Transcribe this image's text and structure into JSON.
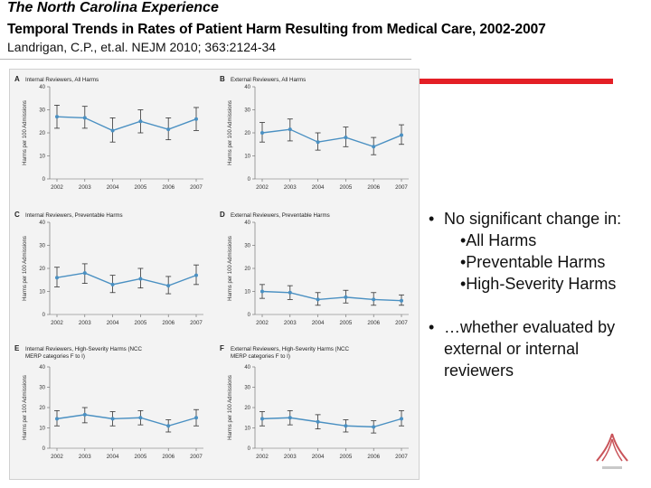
{
  "slide": {
    "title": "The North Carolina Experience",
    "subtitle": "Temporal Trends in Rates of Patient Harm Resulting from Medical Care, 2002-2007",
    "citation": "Landrigan, C.P., et.al. NEJM 2010; 363:2124-34"
  },
  "bullets": {
    "main1": "No significant change in:",
    "subs": [
      "•All Harms",
      "•Preventable Harms",
      "•High-Severity Harms"
    ],
    "main2": "…whether evaluated by external or internal reviewers"
  },
  "colors": {
    "accent_bar": "#e41f26",
    "series_line": "#4a90c2",
    "error_bar": "#333333"
  },
  "chart_data": [
    {
      "type": "line",
      "panel_label": "A",
      "title": "Internal Reviewers, All Harms",
      "ylabel": "Harms per 100 Admissions",
      "x": [
        "2002",
        "2003",
        "2004",
        "2005",
        "2006",
        "2007"
      ],
      "ylim": [
        0,
        40
      ],
      "yticks": [
        "0",
        "10",
        "20",
        "30",
        "40"
      ],
      "values": [
        27,
        26.5,
        21,
        25,
        21.5,
        26
      ],
      "err_low": [
        22,
        22,
        16,
        20,
        17,
        21
      ],
      "err_high": [
        32,
        31.5,
        26.5,
        30,
        26.5,
        31
      ]
    },
    {
      "type": "line",
      "panel_label": "B",
      "title": "External Reviewers, All Harms",
      "ylabel": "Harms per 100 Admissions",
      "x": [
        "2002",
        "2003",
        "2004",
        "2005",
        "2006",
        "2007"
      ],
      "ylim": [
        0,
        40
      ],
      "yticks": [
        "0",
        "10",
        "20",
        "30",
        "40"
      ],
      "values": [
        20,
        21.5,
        16,
        18,
        14,
        19
      ],
      "err_low": [
        16,
        16.5,
        12.5,
        14,
        10.5,
        15
      ],
      "err_high": [
        24.5,
        26,
        20,
        22.5,
        18,
        23.5
      ]
    },
    {
      "type": "line",
      "panel_label": "C",
      "title": "Internal Reviewers, Preventable Harms",
      "ylabel": "Harms per 100 Admissions",
      "x": [
        "2002",
        "2003",
        "2004",
        "2005",
        "2006",
        "2007"
      ],
      "ylim": [
        0,
        40
      ],
      "yticks": [
        "0",
        "10",
        "20",
        "30",
        "40"
      ],
      "values": [
        16,
        18,
        13,
        15.5,
        12.5,
        17
      ],
      "err_low": [
        12,
        13.5,
        9.5,
        11.5,
        9,
        13
      ],
      "err_high": [
        20.5,
        22,
        17,
        20,
        16.5,
        21.5
      ]
    },
    {
      "type": "line",
      "panel_label": "D",
      "title": "External Reviewers, Preventable Harms",
      "ylabel": "Harms per 100 Admissions",
      "x": [
        "2002",
        "2003",
        "2004",
        "2005",
        "2006",
        "2007"
      ],
      "ylim": [
        0,
        40
      ],
      "yticks": [
        "0",
        "10",
        "20",
        "30",
        "40"
      ],
      "values": [
        10,
        9.5,
        6.5,
        7.5,
        6.5,
        6
      ],
      "err_low": [
        7,
        6.5,
        4,
        5,
        4,
        4
      ],
      "err_high": [
        13,
        12.5,
        9.5,
        10.5,
        9.5,
        8.5
      ]
    },
    {
      "type": "line",
      "panel_label": "E",
      "title": "Internal Reviewers, High-Severity Harms (NCC MERP categories F to I)",
      "ylabel": "Harms per 100 Admissions",
      "x": [
        "2002",
        "2003",
        "2004",
        "2005",
        "2006",
        "2007"
      ],
      "ylim": [
        0,
        40
      ],
      "yticks": [
        "0",
        "10",
        "20",
        "30",
        "40"
      ],
      "values": [
        14.5,
        16.5,
        14.5,
        15,
        11,
        15
      ],
      "err_low": [
        11,
        12.5,
        11,
        11.5,
        8,
        11
      ],
      "err_high": [
        18.5,
        20,
        18,
        18.5,
        14,
        19
      ]
    },
    {
      "type": "line",
      "panel_label": "F",
      "title": "External Reviewers, High-Severity Harms (NCC MERP categories F to I)",
      "ylabel": "Harms per 100 Admissions",
      "x": [
        "2002",
        "2003",
        "2004",
        "2005",
        "2006",
        "2007"
      ],
      "ylim": [
        0,
        40
      ],
      "yticks": [
        "0",
        "10",
        "20",
        "30",
        "40"
      ],
      "values": [
        14.5,
        15,
        13,
        11,
        10.5,
        14.5
      ],
      "err_low": [
        11,
        11.5,
        9.5,
        8,
        7.5,
        11
      ],
      "err_high": [
        18,
        18.5,
        16.5,
        14,
        13.5,
        18.5
      ]
    }
  ]
}
